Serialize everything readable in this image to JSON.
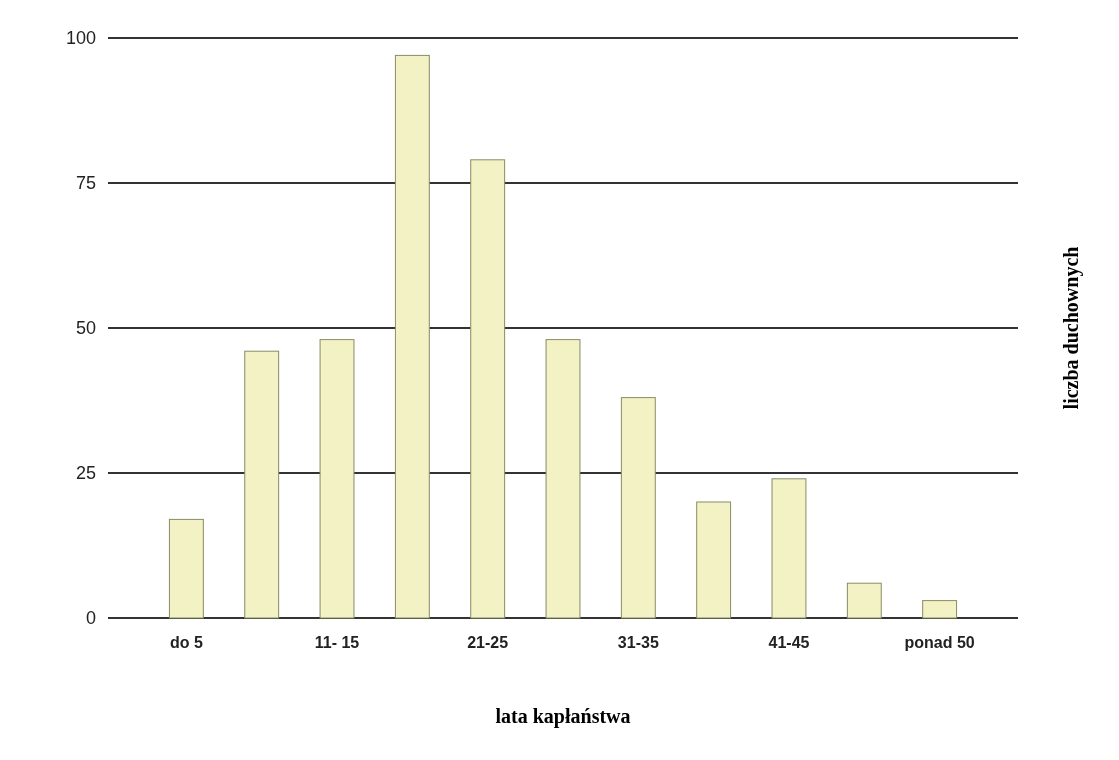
{
  "chart_data": {
    "type": "bar",
    "categories": [
      "do 5",
      null,
      "11- 15",
      null,
      "21-25",
      null,
      "31-35",
      null,
      "41-45",
      null,
      "ponad 50"
    ],
    "values": [
      17,
      46,
      48,
      97,
      79,
      48,
      38,
      20,
      24,
      6,
      3
    ],
    "color": "#f2f2c4",
    "xlabel": "lata kapłaństwa",
    "ylabel": "liczba duchownych",
    "ylim": [
      0,
      100
    ],
    "yticks": [
      0,
      25,
      50,
      75,
      100
    ],
    "grid": "y"
  }
}
